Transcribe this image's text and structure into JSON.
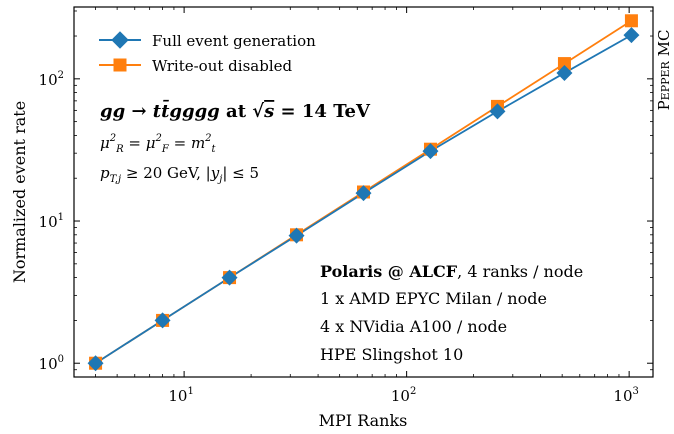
{
  "chart_data": {
    "type": "line",
    "xscale": "log",
    "yscale": "log",
    "xlim": [
      3.2,
      1280
    ],
    "ylim": [
      0.8,
      320
    ],
    "xlabel": "MPI Ranks",
    "ylabel": "Normalized event rate",
    "x": [
      4,
      8,
      16,
      32,
      64,
      128,
      256,
      512,
      1024
    ],
    "x_ticks": [
      {
        "value": 10,
        "base": "10",
        "exp": "1"
      },
      {
        "value": 100,
        "base": "10",
        "exp": "2"
      },
      {
        "value": 1000,
        "base": "10",
        "exp": "3"
      }
    ],
    "y_ticks": [
      {
        "value": 1,
        "base": "10",
        "exp": "0"
      },
      {
        "value": 10,
        "base": "10",
        "exp": "1"
      },
      {
        "value": 100,
        "base": "10",
        "exp": "2"
      }
    ],
    "series": [
      {
        "name": "Write-out disabled",
        "color": "#ff7f0e",
        "marker": "square",
        "values": [
          1.0,
          2.0,
          4.0,
          8.0,
          16.0,
          32.0,
          64.0,
          128.0,
          256.0
        ]
      },
      {
        "name": "Full event generation",
        "color": "#1f77b4",
        "marker": "diamond",
        "values": [
          1.0,
          2.0,
          4.0,
          7.9,
          15.7,
          31.0,
          59.0,
          110.0,
          203.0
        ]
      }
    ],
    "legend": {
      "placement": "top-left",
      "entries": [
        "Full event generation",
        "Write-out disabled"
      ]
    },
    "side_label_small": "EPPER",
    "side_label_big": "P",
    "side_label_rest": " MC",
    "annotation_process": {
      "line1_left": "gg → tt̄gggg",
      "line1_at": " at ",
      "line1_sqrt": "√",
      "line1_s": "s",
      "line1_value": " = 14 TeV",
      "line2": "μ²_R = μ²_F = m²_t",
      "line3": "p_{T,j} ≥ 20 GeV,  |y_j| ≤ 5"
    },
    "annotation_system": {
      "line1_bold": "Polaris @ ALCF",
      "line1_rest": ", 4 ranks / node",
      "line2": "1 x AMD EPYC Milan / node",
      "line3": "4 x NVidia A100 / node",
      "line4": "HPE Slingshot 10"
    }
  }
}
